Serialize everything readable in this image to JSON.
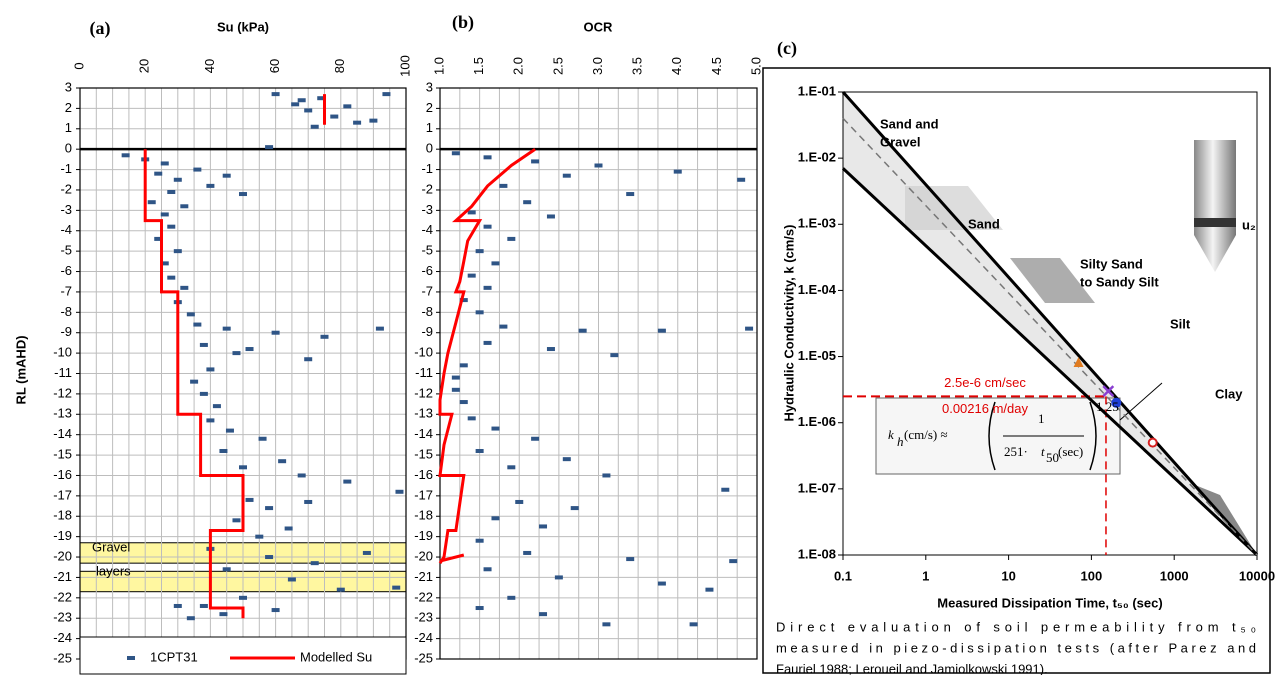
{
  "chart_data": [
    {
      "type": "scatter",
      "panel_label": "(a)",
      "title": "Su (kPa)",
      "ylabel": "RL (mAHD)",
      "xlim": [
        0,
        100
      ],
      "xticks": [
        0,
        20,
        40,
        60,
        80,
        100
      ],
      "xminorticks": [
        0,
        5,
        10,
        15,
        20,
        25,
        30,
        35,
        40,
        45,
        50,
        55,
        60,
        65,
        70,
        75,
        80,
        85,
        90,
        95,
        100
      ],
      "ylim": [
        -25,
        3
      ],
      "yticks": [
        3,
        2,
        1,
        0,
        -1,
        -2,
        -3,
        -4,
        -5,
        -6,
        -7,
        -8,
        -9,
        -10,
        -11,
        -12,
        -13,
        -14,
        -15,
        -16,
        -17,
        -18,
        -19,
        -20,
        -21,
        -22,
        -23,
        -24,
        -25
      ],
      "grid": true,
      "highlights": [
        {
          "ylim": [
            -20.3,
            -19.3
          ]
        },
        {
          "ylim": [
            -21.7,
            -20.7
          ]
        }
      ],
      "annotation": [
        "Gravel",
        "layers"
      ],
      "series": [
        {
          "name": "1CPT31",
          "kind": "scatter",
          "color": "#2f5586",
          "x": [
            60,
            66,
            70,
            74,
            78,
            82,
            85,
            90,
            94,
            72,
            68,
            58,
            14,
            20,
            26,
            24,
            30,
            40,
            36,
            28,
            45,
            22,
            32,
            50,
            26,
            28,
            24,
            30,
            26,
            28,
            32,
            30,
            34,
            36,
            45,
            60,
            75,
            92,
            38,
            52,
            70,
            40,
            35,
            38,
            42,
            48,
            40,
            46,
            56,
            44,
            62,
            50,
            68,
            82,
            98,
            52,
            58,
            70,
            48,
            64,
            55,
            40,
            58,
            72,
            88,
            45,
            65,
            80,
            97,
            50,
            38,
            44,
            60,
            30,
            34
          ],
          "values": [
            2.7,
            2.2,
            1.9,
            2.5,
            1.6,
            2.1,
            1.3,
            1.4,
            2.7,
            1.1,
            2.4,
            0.1,
            -0.3,
            -0.5,
            -0.7,
            -1.2,
            -1.5,
            -1.8,
            -1,
            -2.1,
            -1.3,
            -2.6,
            -2.8,
            -2.2,
            -3.2,
            -3.8,
            -4.4,
            -5,
            -5.6,
            -6.3,
            -6.8,
            -7.5,
            -8.1,
            -8.6,
            -8.8,
            -9,
            -9.2,
            -8.8,
            -9.6,
            -9.8,
            -10.3,
            -10.8,
            -11.4,
            -12,
            -12.6,
            -10,
            -13.3,
            -13.8,
            -14.2,
            -14.8,
            -15.3,
            -15.6,
            -16,
            -16.3,
            -16.8,
            -17.2,
            -17.6,
            -17.3,
            -18.2,
            -18.6,
            -19,
            -19.6,
            -20,
            -20.3,
            -19.8,
            -20.6,
            -21.1,
            -21.6,
            -21.5,
            -22,
            -22.4,
            -22.8,
            -22.6,
            -22.4,
            -23
          ]
        },
        {
          "name": "Modelled Su",
          "kind": "line",
          "color": "#ff0000",
          "x": [
            75,
            75,
            null,
            20,
            20,
            25,
            25,
            30,
            30,
            37,
            37,
            50,
            50,
            40,
            40,
            50,
            50
          ],
          "values": [
            2.7,
            1.2,
            null,
            0,
            -3.5,
            -3.5,
            -7,
            -7,
            -13,
            -13,
            -16,
            -16,
            -18.7,
            -18.7,
            -22.5,
            -22.5,
            -23
          ]
        }
      ]
    },
    {
      "type": "scatter",
      "panel_label": "(b)",
      "title": "OCR",
      "xlim": [
        1,
        5
      ],
      "xticks": [
        {
          "value": 1,
          "label": "1.0"
        },
        1.5,
        {
          "value": 2,
          "label": "2.0"
        },
        2.5,
        {
          "value": 3,
          "label": "3.0"
        },
        3.5,
        {
          "value": 4,
          "label": "4.0"
        },
        4.5,
        {
          "value": 5,
          "label": "5.0"
        }
      ],
      "xminorticks": [
        1,
        1.25,
        1.5,
        1.75,
        2,
        2.25,
        2.5,
        2.75,
        3,
        3.25,
        3.5,
        3.75,
        4,
        4.25,
        4.5,
        4.75,
        5
      ],
      "ylim": [
        -25,
        3
      ],
      "yticks": [
        3,
        2,
        1,
        0,
        -1,
        -2,
        -3,
        -4,
        -5,
        -6,
        -7,
        -8,
        -9,
        -10,
        -11,
        -12,
        -13,
        -14,
        -15,
        -16,
        -17,
        -18,
        -19,
        -20,
        -21,
        -22,
        -23,
        -24,
        -25
      ],
      "grid": true,
      "series": [
        {
          "kind": "scatter",
          "color": "#2f5586",
          "x": [
            1.2,
            1.6,
            2.2,
            3,
            4,
            4.8,
            2.6,
            1.8,
            3.4,
            2.1,
            1.4,
            2.4,
            1.6,
            1.9,
            1.5,
            1.7,
            1.4,
            1.6,
            1.3,
            1.5,
            1.8,
            2.8,
            3.8,
            4.9,
            1.6,
            2.4,
            3.2,
            1.3,
            1.2,
            1.2,
            1.3,
            1.4,
            1.7,
            2.2,
            1.5,
            2.6,
            1.9,
            3.1,
            4.6,
            2,
            2.7,
            1.7,
            2.3,
            1.5,
            2.1,
            3.4,
            4.7,
            1.6,
            2.5,
            3.8,
            4.4,
            1.9,
            1.5,
            2.3,
            3.1,
            4.2
          ],
          "values": [
            -0.2,
            -0.4,
            -0.6,
            -0.8,
            -1.1,
            -1.5,
            -1.3,
            -1.8,
            -2.2,
            -2.6,
            -3.1,
            -3.3,
            -3.8,
            -4.4,
            -5,
            -5.6,
            -6.2,
            -6.8,
            -7.4,
            -8,
            -8.7,
            -8.9,
            -8.9,
            -8.8,
            -9.5,
            -9.8,
            -10.1,
            -10.6,
            -11.2,
            -11.8,
            -12.4,
            -13.2,
            -13.7,
            -14.2,
            -14.8,
            -15.2,
            -15.6,
            -16,
            -16.7,
            -17.3,
            -17.6,
            -18.1,
            -18.5,
            -19.2,
            -19.8,
            -20.1,
            -20.2,
            -20.6,
            -21,
            -21.3,
            -21.6,
            -22,
            -22.5,
            -22.8,
            -23.3,
            -23.3
          ]
        },
        {
          "kind": "line",
          "color": "#ff0000",
          "x": [
            2.2,
            1.9,
            1.6,
            1.4,
            1.2,
            1.5,
            1.35,
            1.3,
            1.25,
            1.2,
            1.3,
            1.2,
            1.1,
            1.05,
            1,
            1,
            1.15,
            1.05,
            1,
            1.3,
            1.2,
            1.1,
            1.05,
            1,
            null,
            1,
            1.3
          ],
          "values": [
            0,
            -0.8,
            -1.8,
            -2.8,
            -3.5,
            -3.5,
            -4.5,
            -5.5,
            -6.5,
            -7,
            -7,
            -8.5,
            -10,
            -11,
            -12.3,
            -13,
            -13,
            -14.5,
            -16,
            -16,
            -18.7,
            -18.7,
            -20,
            -20.3,
            null,
            -20.2,
            -19.9
          ]
        }
      ]
    },
    {
      "type": "scatter",
      "panel_label": "(c)",
      "xlabel": "Measured Dissipation Time, t₅₀  (sec)",
      "ylabel": "Hydraulic Conductivity, k (cm/s)",
      "xscale": "log",
      "yscale": "log",
      "xlim": [
        0.1,
        10000
      ],
      "xticks": [
        0.1,
        1,
        10,
        100,
        1000,
        10000
      ],
      "ylim": [
        1e-08,
        0.1
      ],
      "yticks": [
        {
          "value": 0.1,
          "label": "1.E-01"
        },
        {
          "value": 0.01,
          "label": "1.E-02"
        },
        {
          "value": 0.001,
          "label": "1.E-03"
        },
        {
          "value": 0.0001,
          "label": "1.E-04"
        },
        {
          "value": 1e-05,
          "label": "1.E-05"
        },
        {
          "value": 1e-06,
          "label": "1.E-06"
        },
        {
          "value": 1e-07,
          "label": "1.E-07"
        },
        {
          "value": 1e-08,
          "label": "1.E-08"
        }
      ],
      "series": [
        {
          "kind": "line",
          "color": "#000000",
          "x": [
            0.1,
            10000
          ],
          "values": [
            0.1,
            1e-08
          ]
        },
        {
          "kind": "line",
          "color": "#000000",
          "x": [
            0.1,
            10000
          ],
          "values": [
            0.007,
            1e-08
          ]
        },
        {
          "kind": "line",
          "color": "#777777",
          "dash": true,
          "x": [
            0.1,
            10000
          ],
          "values": [
            0.04,
            1e-08
          ]
        },
        {
          "kind": "scatter",
          "marker": "triangle",
          "color": "#e07b20",
          "x": [
            70
          ],
          "values": [
            8e-06
          ]
        },
        {
          "kind": "scatter",
          "marker": "cross",
          "color": "#8a3fd1",
          "x": [
            160
          ],
          "values": [
            3e-06
          ]
        },
        {
          "kind": "scatter",
          "marker": "dot",
          "color": "#1f3fd6",
          "x": [
            200
          ],
          "values": [
            2e-06
          ]
        },
        {
          "kind": "scatter",
          "marker": "circle",
          "color": "#d62020",
          "x": [
            550
          ],
          "values": [
            5e-07
          ]
        }
      ],
      "reference": {
        "x": 150,
        "y": 2.5e-06,
        "labels": [
          "2.5e-6 cm/sec",
          "0.00216 m/day"
        ]
      },
      "zone_labels": [
        "Sand and",
        "Gravel",
        "Sand",
        "Silty Sand",
        "to Sandy Silt",
        "Silt",
        "Clay"
      ],
      "cone_label": "u₂",
      "equation": {
        "k": "k",
        "k_sub": "h",
        "lhs_rest": "(cm/s) ≈",
        "numerator": "1",
        "denominator": "251·",
        "den_t": "t",
        "den_sub": "50",
        "den_rest": "(sec)",
        "exponent": "1.25"
      },
      "caption": [
        "Direct evaluation of soil permeability from t₅₀",
        "measured in piezo-dissipation tests (after Parez and",
        "Fauriel 1988; Leroueil and Jamiolkowski 1991)."
      ]
    }
  ]
}
